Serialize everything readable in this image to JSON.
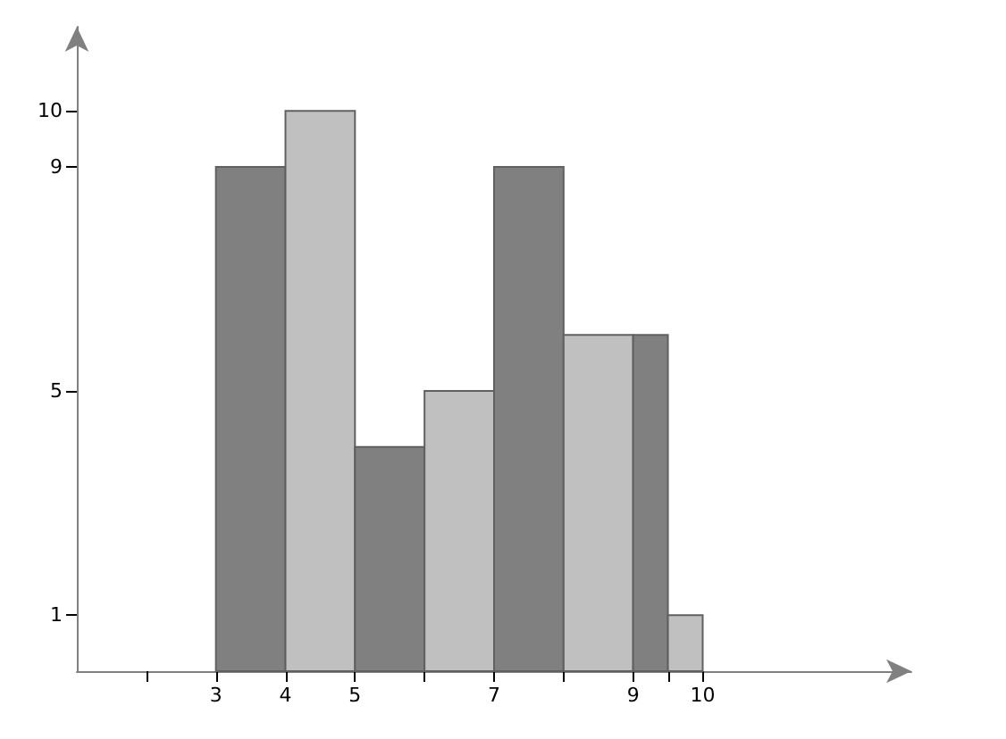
{
  "chart_data": {
    "type": "histogram",
    "bins": [
      3,
      4,
      5,
      6,
      7,
      8,
      9,
      9.5,
      10
    ],
    "values": [
      9,
      10,
      4,
      5,
      9,
      6,
      6,
      1
    ],
    "colors": [
      "#808080",
      "#c0c0c0",
      "#808080",
      "#c0c0c0",
      "#808080",
      "#c0c0c0",
      "#808080",
      "#c0c0c0"
    ],
    "xlim": [
      1,
      13
    ],
    "xticks": [
      {
        "value": 2,
        "label": null
      },
      3,
      4,
      5,
      {
        "value": 6,
        "label": null
      },
      7,
      {
        "value": 8,
        "label": null
      },
      9,
      {
        "value": 9.5,
        "label": null
      },
      10
    ],
    "ylim": [
      0,
      11.5
    ],
    "yticks": [
      1,
      5,
      9,
      10
    ],
    "grid": false
  }
}
